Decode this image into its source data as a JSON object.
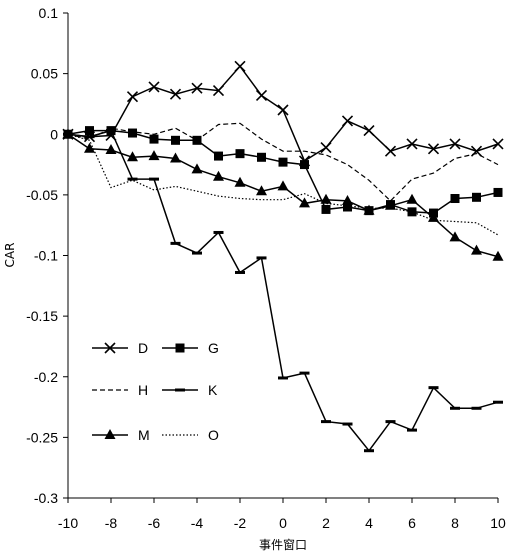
{
  "chart_data": {
    "type": "line",
    "title": "",
    "xlabel": "事件窗口",
    "ylabel": "CAR",
    "xlim": [
      -10,
      10
    ],
    "ylim": [
      -0.3,
      0.1
    ],
    "xticks": [
      "-10",
      "-8",
      "-6",
      "-4",
      "-2",
      "0",
      "2",
      "4",
      "6",
      "8",
      "10"
    ],
    "xtick_values": [
      -10,
      -8,
      -6,
      -4,
      -2,
      0,
      2,
      4,
      6,
      8,
      10
    ],
    "yticks": [
      "0.1",
      "0.05",
      "0",
      "-0.05",
      "-0.1",
      "-0.15",
      "-0.2",
      "-0.25",
      "-0.3"
    ],
    "ytick_values": [
      0.1,
      0.05,
      0,
      -0.05,
      -0.1,
      -0.15,
      -0.2,
      -0.25,
      -0.3
    ],
    "grid": false,
    "legend_placement": "bottom-left",
    "x": [
      -10,
      -9,
      -8,
      -7,
      -6,
      -5,
      -4,
      -3,
      -2,
      -1,
      0,
      1,
      2,
      3,
      4,
      5,
      6,
      7,
      8,
      9,
      10
    ],
    "series": [
      {
        "name": "D",
        "marker": "x",
        "style": "solid",
        "values": [
          0.0,
          -0.002,
          -0.001,
          0.031,
          0.039,
          0.033,
          0.038,
          0.036,
          0.056,
          0.032,
          0.02,
          -0.022,
          -0.011,
          0.011,
          0.003,
          -0.014,
          -0.008,
          -0.012,
          -0.008,
          -0.014,
          -0.008
        ]
      },
      {
        "name": "G",
        "marker": "square",
        "style": "solid",
        "values": [
          0.0,
          0.003,
          0.003,
          0.001,
          -0.004,
          -0.005,
          -0.005,
          -0.018,
          -0.016,
          -0.019,
          -0.023,
          -0.025,
          -0.062,
          -0.06,
          -0.063,
          -0.058,
          -0.064,
          -0.065,
          -0.053,
          -0.052,
          -0.048
        ]
      },
      {
        "name": "H",
        "marker": "none",
        "style": "dashed",
        "values": [
          0.0,
          -0.004,
          0.005,
          0.002,
          0.0,
          0.005,
          -0.005,
          0.008,
          0.009,
          -0.004,
          -0.014,
          -0.014,
          -0.017,
          -0.025,
          -0.038,
          -0.055,
          -0.037,
          -0.032,
          -0.02,
          -0.016,
          -0.025
        ]
      },
      {
        "name": "K",
        "marker": "dash",
        "style": "solid",
        "values": [
          0.0,
          -0.002,
          0.003,
          -0.037,
          -0.037,
          -0.09,
          -0.098,
          -0.081,
          -0.114,
          -0.102,
          -0.201,
          -0.197,
          -0.237,
          -0.239,
          -0.261,
          -0.237,
          -0.244,
          -0.209,
          -0.226,
          -0.226,
          -0.221
        ]
      },
      {
        "name": "M",
        "marker": "triangle",
        "style": "solid",
        "values": [
          0.0,
          -0.012,
          -0.013,
          -0.019,
          -0.018,
          -0.02,
          -0.029,
          -0.035,
          -0.04,
          -0.047,
          -0.043,
          -0.057,
          -0.054,
          -0.055,
          -0.063,
          -0.059,
          -0.054,
          -0.069,
          -0.085,
          -0.096,
          -0.101
        ]
      },
      {
        "name": "O",
        "marker": "none",
        "style": "dotted",
        "values": [
          0.0,
          -0.005,
          -0.044,
          -0.038,
          -0.046,
          -0.043,
          -0.047,
          -0.051,
          -0.053,
          -0.054,
          -0.054,
          -0.049,
          -0.057,
          -0.059,
          -0.061,
          -0.061,
          -0.064,
          -0.071,
          -0.072,
          -0.073,
          -0.083
        ]
      }
    ],
    "legend": [
      "D",
      "G",
      "H",
      "K",
      "M",
      "O"
    ]
  }
}
